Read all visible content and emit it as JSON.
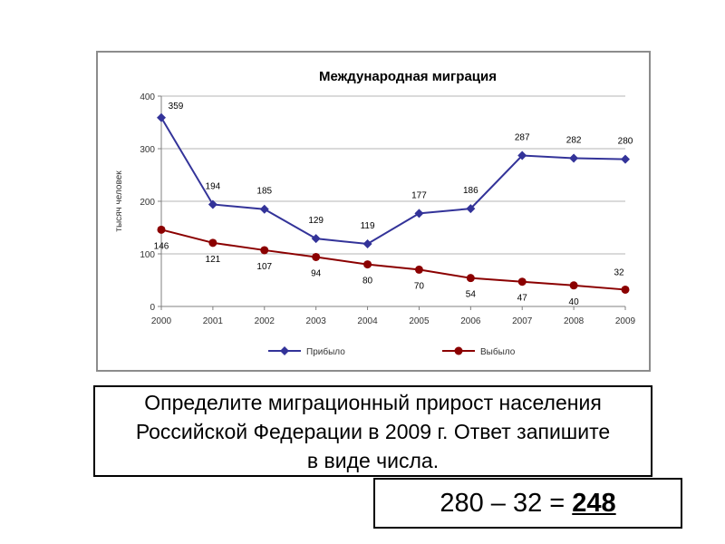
{
  "chart_data": {
    "type": "line",
    "title": "Международная миграция",
    "ylabel": "тысяч человек",
    "xlabel": "",
    "x": [
      "2000",
      "2001",
      "2002",
      "2003",
      "2004",
      "2005",
      "2006",
      "2007",
      "2008",
      "2009"
    ],
    "ylim": [
      0,
      400
    ],
    "yticks": [
      0,
      100,
      200,
      300,
      400
    ],
    "grid": true,
    "legend_position": "bottom",
    "series": [
      {
        "name": "Прибыло",
        "color": "#333399",
        "marker": "diamond",
        "values": [
          359,
          194,
          185,
          129,
          119,
          177,
          186,
          287,
          282,
          280
        ]
      },
      {
        "name": "Выбыло",
        "color": "#8b0000",
        "marker": "circle",
        "values": [
          146,
          121,
          107,
          94,
          80,
          70,
          54,
          47,
          40,
          32
        ]
      }
    ]
  },
  "question": {
    "line1": "Определите миграционный прирост населения",
    "line2": "Российской Федерации в 2009 г. Ответ запишите",
    "line3": "в виде числа."
  },
  "answer": {
    "expression": "280 – 32 = ",
    "result": "248"
  }
}
